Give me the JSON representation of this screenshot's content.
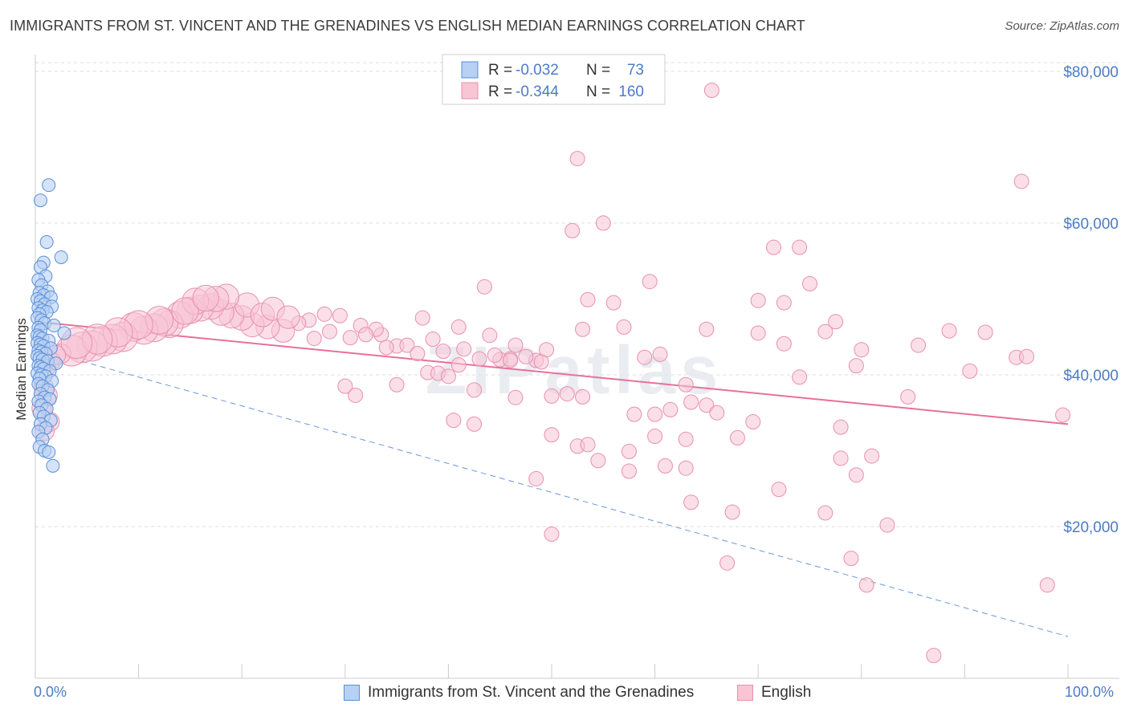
{
  "title": "IMMIGRANTS FROM ST. VINCENT AND THE GRENADINES VS ENGLISH MEDIAN EARNINGS CORRELATION CHART",
  "source": "Source: ZipAtlas.com",
  "watermark": "ZIPatlas",
  "colors": {
    "blue_fill": "#b7d0f3",
    "blue_stroke": "#5b8fd8",
    "blue_line": "#6a98dc",
    "pink_fill": "#f8c5d5",
    "pink_stroke": "#e890ad",
    "pink_line": "#e8709a",
    "axis_text": "#4a7cc9",
    "grid": "#dddddd"
  },
  "legend": {
    "rows": [
      {
        "r_label": "R =",
        "r_value": "-0.032",
        "n_label": "N =",
        "n_value": "73"
      },
      {
        "r_label": "R =",
        "r_value": "-0.344",
        "n_label": "N =",
        "n_value": "160"
      }
    ]
  },
  "bottom_legend": [
    "Immigrants from St. Vincent and the Grenadines",
    "English"
  ],
  "chart_data": {
    "type": "scatter",
    "title": "IMMIGRANTS FROM ST. VINCENT AND THE GRENADINES VS ENGLISH MEDIAN EARNINGS CORRELATION CHART",
    "xlabel": "",
    "ylabel": "Median Earnings",
    "xlim": [
      0,
      100
    ],
    "ylim": [
      0,
      82000
    ],
    "x_tick_labels": [
      "0.0%",
      "100.0%"
    ],
    "y_ticks": [
      20000,
      40000,
      60000,
      80000
    ],
    "y_tick_labels": [
      "$20,000",
      "$40,000",
      "$60,000",
      "$80,000"
    ],
    "grid": true,
    "legend_position": "top-center",
    "series": [
      {
        "name": "Immigrants from St. Vincent and the Grenadines",
        "r": -0.032,
        "n": 73,
        "trend": {
          "x": [
            0,
            100
          ],
          "y": [
            43500,
            5500
          ],
          "style": "dashed"
        },
        "points": [
          [
            1.3,
            65000
          ],
          [
            0.5,
            63000
          ],
          [
            1.1,
            57500
          ],
          [
            2.5,
            55500
          ],
          [
            0.8,
            54800
          ],
          [
            0.5,
            54200
          ],
          [
            1.0,
            53000
          ],
          [
            0.3,
            52500
          ],
          [
            0.6,
            51800
          ],
          [
            1.2,
            51000
          ],
          [
            0.4,
            50800
          ],
          [
            0.8,
            50500
          ],
          [
            1.5,
            50200
          ],
          [
            0.2,
            50000
          ],
          [
            0.5,
            49700
          ],
          [
            0.9,
            49300
          ],
          [
            1.6,
            49000
          ],
          [
            0.3,
            48800
          ],
          [
            0.7,
            48500
          ],
          [
            1.1,
            48300
          ],
          [
            0.4,
            48000
          ],
          [
            0.2,
            47500
          ],
          [
            0.6,
            47200
          ],
          [
            0.9,
            46800
          ],
          [
            1.8,
            46500
          ],
          [
            0.3,
            46200
          ],
          [
            0.5,
            45900
          ],
          [
            2.8,
            45500
          ],
          [
            0.2,
            45200
          ],
          [
            0.4,
            45000
          ],
          [
            0.7,
            44800
          ],
          [
            1.3,
            44500
          ],
          [
            0.2,
            44200
          ],
          [
            0.5,
            44000
          ],
          [
            0.8,
            43800
          ],
          [
            1.5,
            43500
          ],
          [
            0.3,
            43200
          ],
          [
            0.6,
            43000
          ],
          [
            1.0,
            42800
          ],
          [
            0.2,
            42500
          ],
          [
            0.4,
            42200
          ],
          [
            0.7,
            42000
          ],
          [
            1.2,
            41800
          ],
          [
            2.0,
            41500
          ],
          [
            0.3,
            41200
          ],
          [
            0.5,
            41000
          ],
          [
            0.8,
            40800
          ],
          [
            1.4,
            40500
          ],
          [
            0.2,
            40200
          ],
          [
            0.6,
            40000
          ],
          [
            1.0,
            39800
          ],
          [
            0.4,
            39500
          ],
          [
            1.6,
            39200
          ],
          [
            0.3,
            38800
          ],
          [
            0.7,
            38500
          ],
          [
            1.2,
            38000
          ],
          [
            0.5,
            37500
          ],
          [
            0.9,
            37000
          ],
          [
            1.4,
            36800
          ],
          [
            0.3,
            36500
          ],
          [
            0.6,
            36000
          ],
          [
            1.1,
            35500
          ],
          [
            0.4,
            35000
          ],
          [
            0.8,
            34500
          ],
          [
            1.5,
            34000
          ],
          [
            0.5,
            33500
          ],
          [
            1.0,
            33000
          ],
          [
            0.3,
            32500
          ],
          [
            0.7,
            31500
          ],
          [
            0.4,
            30500
          ],
          [
            0.9,
            30000
          ],
          [
            1.3,
            29800
          ],
          [
            1.7,
            28000
          ]
        ]
      },
      {
        "name": "English",
        "r": -0.344,
        "n": 160,
        "trend": {
          "x": [
            0,
            100
          ],
          "y": [
            47000,
            33500
          ],
          "style": "solid"
        },
        "points": [
          [
            65.5,
            77500
          ],
          [
            52.5,
            68500
          ],
          [
            95.5,
            65500
          ],
          [
            55.0,
            60000
          ],
          [
            52.0,
            59000
          ],
          [
            71.5,
            56800
          ],
          [
            74.0,
            56800
          ],
          [
            59.5,
            52300
          ],
          [
            75.0,
            52000
          ],
          [
            43.5,
            51600
          ],
          [
            53.5,
            49900
          ],
          [
            56.0,
            49500
          ],
          [
            70.0,
            49800
          ],
          [
            72.5,
            49500
          ],
          [
            37.5,
            47500
          ],
          [
            41.0,
            46300
          ],
          [
            57.0,
            46300
          ],
          [
            53.0,
            46000
          ],
          [
            65.0,
            46000
          ],
          [
            70.0,
            45500
          ],
          [
            76.5,
            45700
          ],
          [
            88.5,
            45800
          ],
          [
            44.0,
            45200
          ],
          [
            33.5,
            45300
          ],
          [
            35.0,
            43800
          ],
          [
            38.5,
            44700
          ],
          [
            46.5,
            43900
          ],
          [
            49.5,
            43300
          ],
          [
            59.0,
            42300
          ],
          [
            46.0,
            42100
          ],
          [
            60.5,
            42700
          ],
          [
            72.5,
            44100
          ],
          [
            79.5,
            41200
          ],
          [
            95.0,
            42300
          ],
          [
            41.0,
            41300
          ],
          [
            38.0,
            40300
          ],
          [
            45.0,
            42000
          ],
          [
            48.5,
            41900
          ],
          [
            39.0,
            40200
          ],
          [
            40.0,
            39800
          ],
          [
            74.0,
            39700
          ],
          [
            63.0,
            38700
          ],
          [
            30.0,
            38500
          ],
          [
            35.0,
            38700
          ],
          [
            31.0,
            37300
          ],
          [
            42.5,
            38000
          ],
          [
            46.5,
            37000
          ],
          [
            50.0,
            37200
          ],
          [
            51.5,
            37500
          ],
          [
            53.0,
            37100
          ],
          [
            63.5,
            36400
          ],
          [
            65.0,
            36000
          ],
          [
            84.5,
            37100
          ],
          [
            58.0,
            34800
          ],
          [
            60.0,
            34800
          ],
          [
            61.5,
            35400
          ],
          [
            66.0,
            35000
          ],
          [
            69.5,
            33800
          ],
          [
            78.0,
            33100
          ],
          [
            40.5,
            34000
          ],
          [
            42.5,
            33500
          ],
          [
            50.0,
            32100
          ],
          [
            52.5,
            30600
          ],
          [
            53.5,
            30800
          ],
          [
            60.0,
            31900
          ],
          [
            63.0,
            31500
          ],
          [
            68.0,
            31700
          ],
          [
            57.5,
            29900
          ],
          [
            54.5,
            28700
          ],
          [
            61.0,
            28000
          ],
          [
            48.5,
            26300
          ],
          [
            57.5,
            27300
          ],
          [
            63.0,
            27700
          ],
          [
            72.0,
            24900
          ],
          [
            78.0,
            29000
          ],
          [
            81.0,
            29300
          ],
          [
            79.5,
            26800
          ],
          [
            63.5,
            23200
          ],
          [
            67.5,
            21900
          ],
          [
            76.5,
            21800
          ],
          [
            82.5,
            20200
          ],
          [
            50.0,
            19000
          ],
          [
            67.0,
            15200
          ],
          [
            79.0,
            15800
          ],
          [
            80.5,
            12300
          ],
          [
            98.0,
            12300
          ],
          [
            87.0,
            3000
          ],
          [
            99.5,
            34700
          ],
          [
            96.0,
            42400
          ],
          [
            92.0,
            45600
          ],
          [
            90.5,
            40500
          ],
          [
            85.5,
            43900
          ],
          [
            80.0,
            43300
          ],
          [
            77.5,
            47000
          ],
          [
            33.0,
            46000
          ],
          [
            31.5,
            46500
          ],
          [
            29.5,
            47800
          ],
          [
            28.0,
            48000
          ],
          [
            26.5,
            47200
          ],
          [
            25.5,
            46800
          ],
          [
            24.0,
            45800
          ],
          [
            22.5,
            46300
          ],
          [
            21.0,
            46600
          ],
          [
            20.0,
            47500
          ],
          [
            19.0,
            47800
          ],
          [
            18.0,
            48200
          ],
          [
            17.0,
            49000
          ],
          [
            16.0,
            48800
          ],
          [
            15.0,
            48500
          ],
          [
            14.0,
            47900
          ],
          [
            13.0,
            46700
          ],
          [
            12.5,
            46900
          ],
          [
            11.5,
            46200
          ],
          [
            10.5,
            45900
          ],
          [
            9.5,
            46300
          ],
          [
            8.5,
            45000
          ],
          [
            7.5,
            44700
          ],
          [
            6.5,
            44400
          ],
          [
            5.5,
            43800
          ],
          [
            4.5,
            43600
          ],
          [
            3.5,
            43200
          ],
          [
            2.5,
            42800
          ],
          [
            1.5,
            41800
          ],
          [
            1.0,
            41000
          ],
          [
            0.8,
            38400
          ],
          [
            1.2,
            37300
          ],
          [
            0.6,
            35600
          ],
          [
            1.4,
            33800
          ],
          [
            0.9,
            32600
          ],
          [
            27.0,
            44800
          ],
          [
            28.5,
            45700
          ],
          [
            30.5,
            44900
          ],
          [
            32.0,
            45300
          ],
          [
            34.0,
            43600
          ],
          [
            36.0,
            43900
          ],
          [
            37.0,
            42800
          ],
          [
            39.5,
            43100
          ],
          [
            41.5,
            43400
          ],
          [
            43.0,
            42100
          ],
          [
            44.5,
            42600
          ],
          [
            46.0,
            41900
          ],
          [
            47.5,
            42400
          ],
          [
            49.0,
            41700
          ],
          [
            20.5,
            49200
          ],
          [
            18.5,
            50300
          ],
          [
            17.5,
            50000
          ],
          [
            15.5,
            49700
          ],
          [
            14.5,
            48400
          ],
          [
            16.5,
            50100
          ],
          [
            22.0,
            47900
          ],
          [
            23.0,
            48700
          ],
          [
            24.5,
            47600
          ],
          [
            12.0,
            47200
          ],
          [
            10.0,
            46600
          ],
          [
            8.0,
            45600
          ],
          [
            6.0,
            44700
          ],
          [
            4.0,
            44200
          ],
          [
            2.0,
            42600
          ]
        ]
      }
    ]
  }
}
